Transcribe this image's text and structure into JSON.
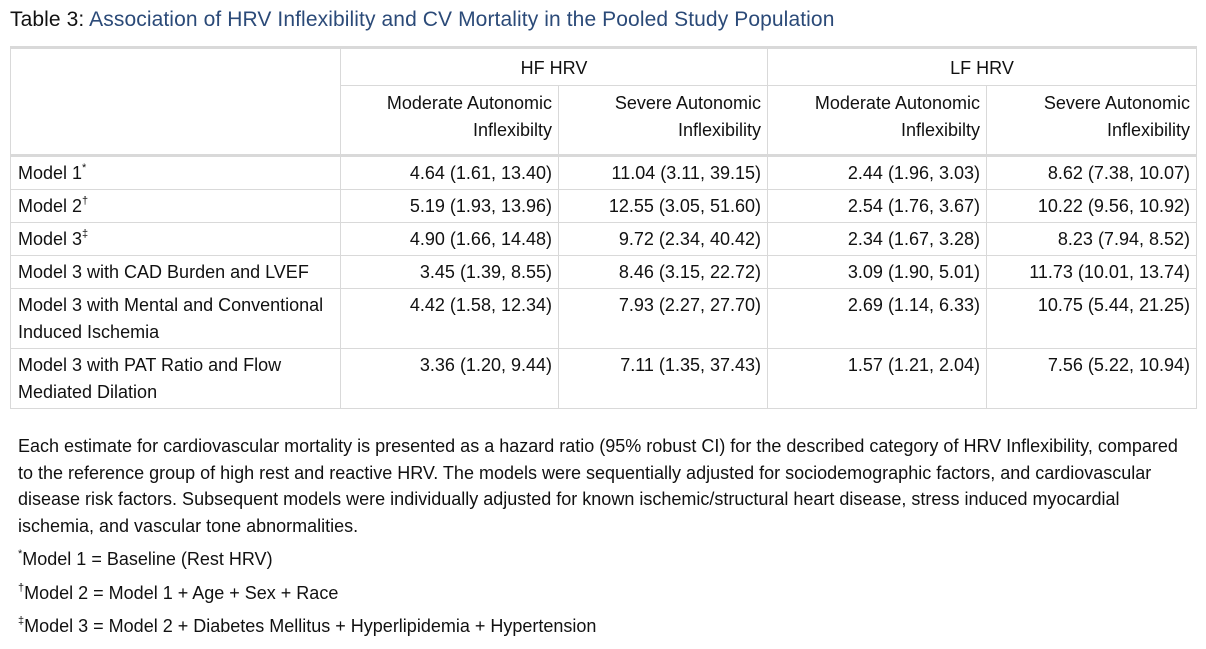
{
  "caption": {
    "label": "Table 3:",
    "title": "Association of HRV Inflexibility and CV Mortality in the Pooled Study Population"
  },
  "header": {
    "groups": [
      "HF HRV",
      "LF HRV"
    ],
    "subcols": [
      [
        "Moderate Autonomic",
        "Inflexibilty"
      ],
      [
        "Severe Autonomic",
        "Inflexibility"
      ],
      [
        "Moderate Autonomic",
        "Inflexibilty"
      ],
      [
        "Severe Autonomic",
        "Inflexibility"
      ]
    ]
  },
  "rows": [
    {
      "label": "Model 1",
      "mark": "*",
      "values": [
        "4.64 (1.61, 13.40)",
        "11.04 (3.11, 39.15)",
        "2.44 (1.96, 3.03)",
        "8.62 (7.38, 10.07)"
      ]
    },
    {
      "label": "Model 2",
      "mark": "†",
      "values": [
        "5.19 (1.93, 13.96)",
        "12.55 (3.05, 51.60)",
        "2.54 (1.76, 3.67)",
        "10.22 (9.56, 10.92)"
      ]
    },
    {
      "label": "Model 3",
      "mark": "‡",
      "values": [
        "4.90 (1.66, 14.48)",
        "9.72 (2.34, 40.42)",
        "2.34 (1.67, 3.28)",
        "8.23 (7.94, 8.52)"
      ]
    },
    {
      "label": "Model 3 with CAD Burden and LVEF",
      "mark": "",
      "values": [
        "3.45 (1.39, 8.55)",
        "8.46 (3.15, 22.72)",
        "3.09 (1.90, 5.01)",
        "11.73 (10.01, 13.74)"
      ]
    },
    {
      "label": "Model 3 with Mental and Conventional Induced Ischemia",
      "mark": "",
      "values": [
        "4.42 (1.58, 12.34)",
        "7.93 (2.27, 27.70)",
        "2.69 (1.14, 6.33)",
        "10.75 (5.44, 21.25)"
      ]
    },
    {
      "label": "Model 3 with PAT Ratio and Flow Mediated Dilation",
      "mark": "",
      "values": [
        "3.36 (1.20, 9.44)",
        "7.11 (1.35, 37.43)",
        "1.57 (1.21, 2.04)",
        "7.56 (5.22, 10.94)"
      ]
    }
  ],
  "notes": {
    "description": "Each estimate for cardiovascular mortality is presented as a hazard ratio (95% robust CI) for the described category of HRV Inflexibility, compared to the reference group of high rest and reactive HRV. The models were sequentially adjusted for sociodemographic factors, and cardiovascular disease risk factors. Subsequent models were individually adjusted for known ischemic/structural heart disease, stress induced myocardial ischemia, and vascular tone abnormalities.",
    "footnotes": [
      {
        "mark": "*",
        "text": "Model 1 = Baseline (Rest HRV)"
      },
      {
        "mark": "†",
        "text": "Model 2 = Model 1 + Age + Sex + Race"
      },
      {
        "mark": "‡",
        "text": "Model 3 = Model 2 + Diabetes Mellitus + Hyperlipidemia + Hypertension"
      }
    ]
  }
}
